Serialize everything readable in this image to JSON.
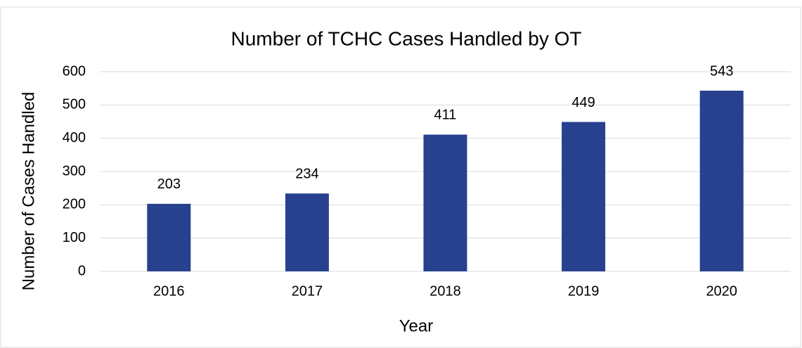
{
  "chart_data": {
    "type": "bar",
    "title": "Number of TCHC Cases Handled by OT",
    "x_label": "Year",
    "y_label": "Number of Cases Handled",
    "categories": [
      "2016",
      "2017",
      "2018",
      "2019",
      "2020"
    ],
    "values": [
      203,
      234,
      411,
      449,
      543
    ],
    "color": "#27418e",
    "ylim": [
      0,
      600
    ],
    "yticks": [
      0,
      100,
      200,
      300,
      400,
      500,
      600
    ],
    "grid": true
  }
}
